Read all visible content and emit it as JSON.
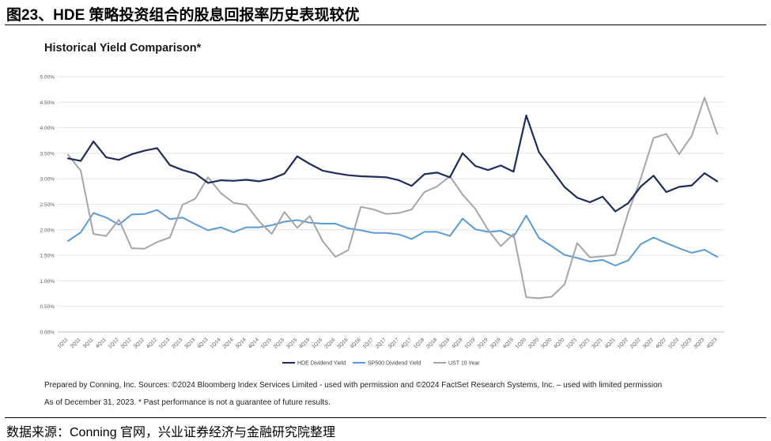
{
  "figure_title": "图23、HDE 策略投资组合的股息回报率历史表现较优",
  "source_text": "数据来源：Conning 官网，兴业证券经济与金融研究院整理",
  "footnote_1": "Prepared by Conning, Inc. Sources: ©2024 Bloomberg Index Services Limited - used with permission and ©2024 FactSet Research Systems, Inc. – used with limited permission",
  "footnote_2": "As of December 31, 2023. * Past performance is not a guarantee of future results.",
  "chart_data": {
    "type": "line",
    "title": "Historical Yield Comparison*",
    "xlabel": "",
    "ylabel": "",
    "ylim": [
      0,
      5
    ],
    "yticks": [
      "0.00%",
      "0.50%",
      "1.00%",
      "1.50%",
      "2.00%",
      "2.50%",
      "3.00%",
      "3.50%",
      "4.00%",
      "4.50%",
      "5.00%"
    ],
    "grid": true,
    "legend_position": "bottom-center",
    "categories": [
      "1Q11",
      "2Q11",
      "3Q11",
      "4Q11",
      "1Q12",
      "2Q12",
      "3Q12",
      "4Q12",
      "1Q13",
      "2Q13",
      "3Q13",
      "4Q13",
      "1Q14",
      "2Q14",
      "3Q14",
      "4Q14",
      "1Q15",
      "2Q15",
      "3Q15",
      "4Q15",
      "1Q16",
      "2Q16",
      "3Q16",
      "4Q16",
      "1Q17",
      "2Q17",
      "3Q17",
      "4Q17",
      "1Q18",
      "2Q18",
      "3Q18",
      "4Q18",
      "1Q19",
      "2Q19",
      "3Q19",
      "4Q19",
      "1Q20",
      "2Q20",
      "3Q20",
      "4Q20",
      "1Q21",
      "2Q21",
      "3Q21",
      "4Q21",
      "1Q22",
      "2Q22",
      "3Q22",
      "4Q22",
      "1Q23",
      "2Q23",
      "3Q23",
      "4Q23"
    ],
    "series": [
      {
        "name": "HDE Dividend Yield",
        "color": "#1f2d5c",
        "values": [
          3.4,
          3.35,
          3.73,
          3.42,
          3.37,
          3.48,
          3.55,
          3.6,
          3.27,
          3.17,
          3.1,
          2.92,
          2.97,
          2.96,
          2.98,
          2.95,
          3.0,
          3.1,
          3.44,
          3.29,
          3.16,
          3.11,
          3.07,
          3.05,
          3.04,
          3.03,
          2.97,
          2.86,
          3.09,
          3.12,
          3.03,
          3.5,
          3.25,
          3.17,
          3.26,
          3.14,
          4.24,
          3.52,
          3.18,
          2.84,
          2.63,
          2.54,
          2.65,
          2.36,
          2.52,
          2.85,
          3.06,
          2.74,
          2.84,
          2.87,
          3.11,
          2.95
        ]
      },
      {
        "name": "SP500 Dividend Yield",
        "color": "#5b9bd5",
        "values": [
          1.78,
          1.95,
          2.33,
          2.24,
          2.1,
          2.3,
          2.31,
          2.39,
          2.21,
          2.24,
          2.11,
          1.99,
          2.05,
          1.95,
          2.05,
          2.05,
          2.09,
          2.16,
          2.19,
          2.14,
          2.12,
          2.12,
          2.03,
          1.99,
          1.94,
          1.94,
          1.91,
          1.82,
          1.96,
          1.96,
          1.88,
          2.22,
          2.01,
          1.96,
          1.98,
          1.86,
          2.28,
          1.84,
          1.68,
          1.51,
          1.45,
          1.38,
          1.41,
          1.3,
          1.4,
          1.72,
          1.85,
          1.74,
          1.64,
          1.55,
          1.61,
          1.47
        ]
      },
      {
        "name": "UST 10 Year",
        "color": "#a6a6a6",
        "values": [
          3.47,
          3.16,
          1.92,
          1.88,
          2.2,
          1.64,
          1.63,
          1.76,
          1.85,
          2.49,
          2.61,
          3.03,
          2.72,
          2.53,
          2.49,
          2.17,
          1.92,
          2.35,
          2.04,
          2.27,
          1.78,
          1.47,
          1.6,
          2.45,
          2.4,
          2.31,
          2.33,
          2.4,
          2.74,
          2.85,
          3.05,
          2.69,
          2.41,
          2.0,
          1.68,
          1.92,
          0.68,
          0.66,
          0.69,
          0.93,
          1.74,
          1.46,
          1.48,
          1.51,
          2.33,
          3.01,
          3.8,
          3.88,
          3.48,
          3.84,
          4.59,
          3.88
        ]
      }
    ]
  }
}
